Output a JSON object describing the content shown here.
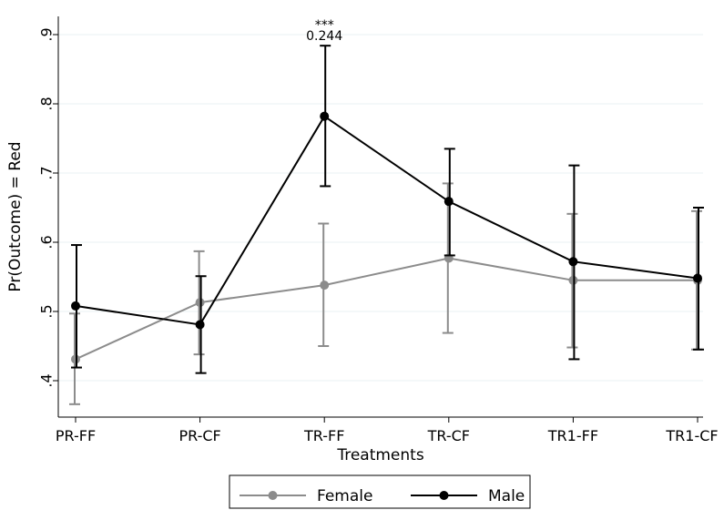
{
  "chart_data": {
    "type": "line",
    "title": "",
    "xlabel": "Treatments",
    "ylabel": "Pr(Outcome) = Red",
    "categories": [
      "PR-FF",
      "PR-CF",
      "TR-FF",
      "TR-CF",
      "TR1-FF",
      "TR1-CF"
    ],
    "yticks": [
      0.4,
      0.5,
      0.6,
      0.7,
      0.8,
      0.9
    ],
    "ytick_labels": [
      ".4",
      ".5",
      ".6",
      ".7",
      ".8",
      ".9"
    ],
    "ylim": [
      0.35,
      0.93
    ],
    "grid": true,
    "legend_position": "bottom",
    "series": [
      {
        "name": "Female",
        "color": "#8c8c8c",
        "values": [
          0.431,
          0.513,
          0.538,
          0.577,
          0.545,
          0.545
        ],
        "ci_low": [
          0.366,
          0.438,
          0.45,
          0.469,
          0.448,
          0.445
        ],
        "ci_high": [
          0.497,
          0.587,
          0.627,
          0.685,
          0.641,
          0.645
        ]
      },
      {
        "name": "Male",
        "color": "#000000",
        "values": [
          0.508,
          0.481,
          0.782,
          0.659,
          0.572,
          0.548
        ],
        "ci_low": [
          0.419,
          0.411,
          0.681,
          0.581,
          0.431,
          0.445
        ],
        "ci_high": [
          0.596,
          0.551,
          0.884,
          0.735,
          0.711,
          0.65
        ]
      }
    ],
    "annotations": [
      {
        "category": "TR-FF",
        "y": 0.884,
        "stars": "***",
        "value": "0.244"
      }
    ]
  }
}
